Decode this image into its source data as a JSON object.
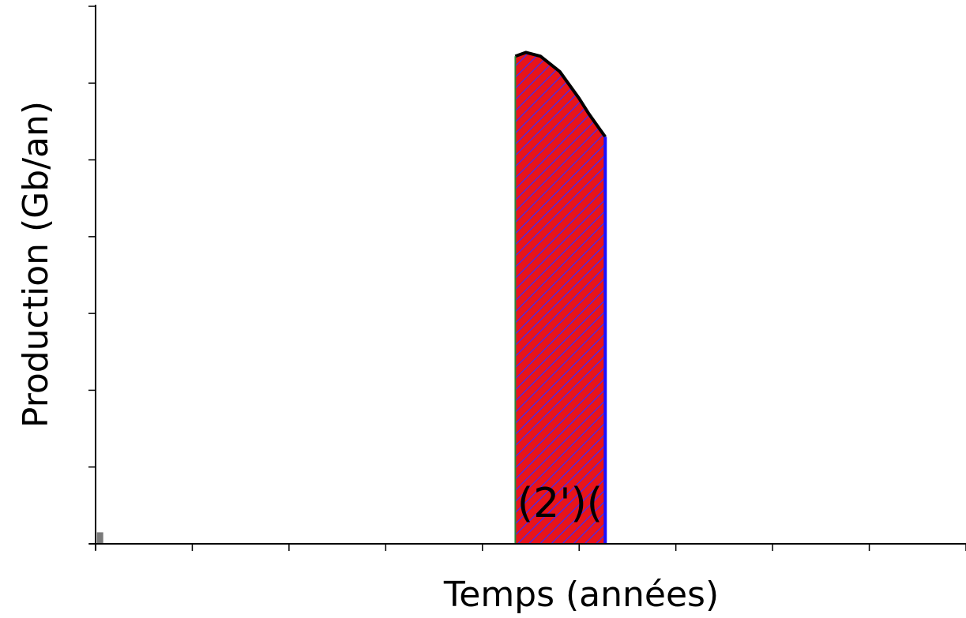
{
  "chart_data": {
    "type": "area",
    "title": "",
    "xlabel": "Temps (années)",
    "ylabel": "Production (Gb/an)",
    "x_tick_count": 9,
    "y_tick_count": 7,
    "tick_labels_shown": false,
    "grid": false,
    "xlim": [
      0,
      9
    ],
    "ylim": [
      0,
      7
    ],
    "series": [
      {
        "name": "",
        "fill": "#e8141a",
        "hatch": "#3a2cff",
        "right_edge": "#1a10ff",
        "left_edge": "#2a8a3a",
        "x": [
          4.34,
          4.45,
          4.6,
          4.8,
          5.0,
          5.1,
          5.27
        ],
        "y": [
          6.35,
          6.4,
          6.35,
          6.15,
          5.8,
          5.6,
          5.3
        ]
      }
    ],
    "annotations": [
      {
        "text": "(2')(",
        "x": 4.36,
        "y": 0.35
      }
    ],
    "marker": {
      "x": 0.03,
      "y": 0.15,
      "color": "#7a7a7a"
    }
  }
}
